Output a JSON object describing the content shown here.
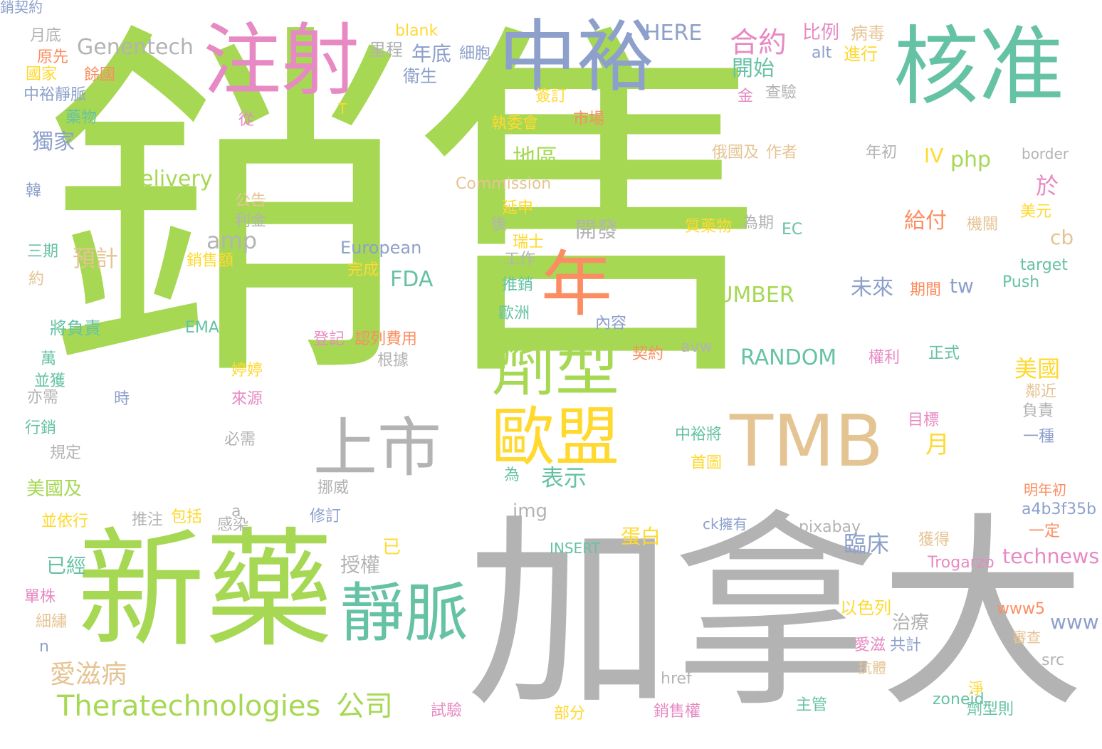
{
  "palette": {
    "green": "#a6d854",
    "gray": "#b3b3b3",
    "teal": "#66c2a5",
    "blue": "#8da0cb",
    "pink": "#e78ac3",
    "orange": "#fc8d62",
    "yellow": "#ffd92f",
    "tan": "#e5c494"
  },
  "words": [
    {
      "text": "銷售",
      "color": "green"
    },
    {
      "text": "加拿大",
      "color": "gray"
    },
    {
      "text": "新藥",
      "color": "green"
    },
    {
      "text": "中裕",
      "color": "blue"
    },
    {
      "text": "核准",
      "color": "teal"
    },
    {
      "text": "注射",
      "color": "pink"
    },
    {
      "text": "TMB",
      "color": "tan"
    },
    {
      "text": "年",
      "color": "orange"
    },
    {
      "text": "劑型",
      "color": "green"
    },
    {
      "text": "歐盟",
      "color": "yellow"
    },
    {
      "text": "上市",
      "color": "gray"
    },
    {
      "text": "靜脈",
      "color": "teal"
    },
    {
      "text": "Theratechnologies",
      "color": "green"
    },
    {
      "text": "公司",
      "color": "green"
    },
    {
      "text": "愛滋病",
      "color": "tan"
    },
    {
      "text": "Genentech",
      "color": "gray"
    },
    {
      "text": "合約",
      "color": "pink"
    },
    {
      "text": "開始",
      "color": "teal"
    },
    {
      "text": "HERE",
      "color": "blue"
    },
    {
      "text": "比例",
      "color": "pink"
    },
    {
      "text": "病毒",
      "color": "tan"
    },
    {
      "text": "blank",
      "color": "yellow"
    },
    {
      "text": "里程",
      "color": "gray"
    },
    {
      "text": "年底",
      "color": "blue"
    },
    {
      "text": "細胞",
      "color": "blue"
    },
    {
      "text": "衛生",
      "color": "blue"
    },
    {
      "text": "alt",
      "color": "blue"
    },
    {
      "text": "進行",
      "color": "yellow"
    },
    {
      "text": "月底",
      "color": "gray"
    },
    {
      "text": "原先",
      "color": "orange"
    },
    {
      "text": "國家",
      "color": "yellow"
    },
    {
      "text": "餘國",
      "color": "orange"
    },
    {
      "text": "中裕靜脈",
      "color": "blue"
    },
    {
      "text": "藥物",
      "color": "teal"
    },
    {
      "text": "T",
      "color": "yellow"
    },
    {
      "text": "從",
      "color": "pink"
    },
    {
      "text": "簽訂",
      "color": "yellow"
    },
    {
      "text": "執委會",
      "color": "yellow"
    },
    {
      "text": "市場",
      "color": "orange"
    },
    {
      "text": "金",
      "color": "pink"
    },
    {
      "text": "查驗",
      "color": "gray"
    },
    {
      "text": "獨家",
      "color": "blue"
    },
    {
      "text": "地區",
      "color": "green"
    },
    {
      "text": "俄國及",
      "color": "tan"
    },
    {
      "text": "作者",
      "color": "tan"
    },
    {
      "text": "年初",
      "color": "gray"
    },
    {
      "text": "IV",
      "color": "yellow"
    },
    {
      "text": "php",
      "color": "green"
    },
    {
      "text": "border",
      "color": "gray"
    },
    {
      "text": "delivery",
      "color": "green"
    },
    {
      "text": "Commission",
      "color": "tan"
    },
    {
      "text": "於",
      "color": "pink"
    },
    {
      "text": "韓",
      "color": "blue"
    },
    {
      "text": "公告",
      "color": "tan"
    },
    {
      "text": "延申",
      "color": "yellow"
    },
    {
      "text": "美元",
      "color": "yellow"
    },
    {
      "text": "利金",
      "color": "gray"
    },
    {
      "text": "給付",
      "color": "orange"
    },
    {
      "text": "amp",
      "color": "gray"
    },
    {
      "text": "開發",
      "color": "gray"
    },
    {
      "text": "後",
      "color": "gray"
    },
    {
      "text": "質藥物",
      "color": "yellow"
    },
    {
      "text": "為期",
      "color": "gray"
    },
    {
      "text": "EC",
      "color": "teal"
    },
    {
      "text": "機關",
      "color": "tan"
    },
    {
      "text": "cb",
      "color": "tan"
    },
    {
      "text": "三期",
      "color": "teal"
    },
    {
      "text": "預計",
      "color": "tan"
    },
    {
      "text": "瑞士",
      "color": "yellow"
    },
    {
      "text": "European",
      "color": "blue"
    },
    {
      "text": "工作",
      "color": "gray"
    },
    {
      "text": "target",
      "color": "teal"
    },
    {
      "text": "約",
      "color": "tan"
    },
    {
      "text": "銷售額",
      "color": "yellow"
    },
    {
      "text": "完成",
      "color": "yellow"
    },
    {
      "text": "FDA",
      "color": "teal"
    },
    {
      "text": "推銷",
      "color": "teal"
    },
    {
      "text": "NUMBER",
      "color": "green"
    },
    {
      "text": "未來",
      "color": "blue"
    },
    {
      "text": "期間",
      "color": "orange"
    },
    {
      "text": "tw",
      "color": "blue"
    },
    {
      "text": "Push",
      "color": "teal"
    },
    {
      "text": "歐洲",
      "color": "teal"
    },
    {
      "text": "將負責",
      "color": "teal"
    },
    {
      "text": "EMA",
      "color": "teal"
    },
    {
      "text": "內容",
      "color": "blue"
    },
    {
      "text": "登記",
      "color": "pink"
    },
    {
      "text": "認列費用",
      "color": "orange"
    },
    {
      "text": "契約",
      "color": "orange"
    },
    {
      "text": "avw",
      "color": "gray"
    },
    {
      "text": "RANDOM",
      "color": "teal"
    },
    {
      "text": "權利",
      "color": "pink"
    },
    {
      "text": "正式",
      "color": "teal"
    },
    {
      "text": "萬",
      "color": "teal"
    },
    {
      "text": "根據",
      "color": "gray"
    },
    {
      "text": "婷婷",
      "color": "yellow"
    },
    {
      "text": "美國",
      "color": "yellow"
    },
    {
      "text": "並獲",
      "color": "teal"
    },
    {
      "text": "時",
      "color": "blue"
    },
    {
      "text": "來源",
      "color": "pink"
    },
    {
      "text": "鄰近",
      "color": "tan"
    },
    {
      "text": "亦需",
      "color": "gray"
    },
    {
      "text": "負責",
      "color": "gray"
    },
    {
      "text": "行銷",
      "color": "teal"
    },
    {
      "text": "中裕將",
      "color": "teal"
    },
    {
      "text": "目標",
      "color": "pink"
    },
    {
      "text": "一種",
      "color": "blue"
    },
    {
      "text": "必需",
      "color": "gray"
    },
    {
      "text": "首圖",
      "color": "yellow"
    },
    {
      "text": "月",
      "color": "yellow"
    },
    {
      "text": "規定",
      "color": "gray"
    },
    {
      "text": "表示",
      "color": "teal"
    },
    {
      "text": "美國及",
      "color": "green"
    },
    {
      "text": "為",
      "color": "teal"
    },
    {
      "text": "挪威",
      "color": "gray"
    },
    {
      "text": "明年初",
      "color": "orange"
    },
    {
      "text": "img",
      "color": "gray"
    },
    {
      "text": "a4b3f35b",
      "color": "blue"
    },
    {
      "text": "並依行",
      "color": "yellow"
    },
    {
      "text": "推注",
      "color": "gray"
    },
    {
      "text": "包括",
      "color": "yellow"
    },
    {
      "text": "感染",
      "color": "gray"
    },
    {
      "text": "a",
      "color": "gray"
    },
    {
      "text": "修訂",
      "color": "blue"
    },
    {
      "text": "ck擁有",
      "color": "blue"
    },
    {
      "text": "pixabay",
      "color": "gray"
    },
    {
      "text": "一定",
      "color": "orange"
    },
    {
      "text": "蛋白",
      "color": "yellow"
    },
    {
      "text": "INSERT",
      "color": "teal"
    },
    {
      "text": "臨床",
      "color": "blue"
    },
    {
      "text": "獲得",
      "color": "tan"
    },
    {
      "text": "已經",
      "color": "teal"
    },
    {
      "text": "已",
      "color": "yellow"
    },
    {
      "text": "technews",
      "color": "pink"
    },
    {
      "text": "授權",
      "color": "gray"
    },
    {
      "text": "Trogarzo",
      "color": "pink"
    },
    {
      "text": "單株",
      "color": "pink"
    },
    {
      "text": "以色列",
      "color": "yellow"
    },
    {
      "text": "www5",
      "color": "orange"
    },
    {
      "text": "細繡",
      "color": "tan"
    },
    {
      "text": "治療",
      "color": "gray"
    },
    {
      "text": "www",
      "color": "blue"
    },
    {
      "text": "n",
      "color": "blue"
    },
    {
      "text": "愛滋",
      "color": "pink"
    },
    {
      "text": "共計",
      "color": "blue"
    },
    {
      "text": "審查",
      "color": "tan"
    },
    {
      "text": "src",
      "color": "gray"
    },
    {
      "text": "抗體",
      "color": "tan"
    },
    {
      "text": "href",
      "color": "gray"
    },
    {
      "text": "淨",
      "color": "yellow"
    },
    {
      "text": "主管",
      "color": "teal"
    },
    {
      "text": "zoneid",
      "color": "teal"
    },
    {
      "text": "試驗",
      "color": "pink"
    },
    {
      "text": "部分",
      "color": "yellow"
    },
    {
      "text": "銷售權",
      "color": "pink"
    },
    {
      "text": "劑型則",
      "color": "teal"
    },
    {
      "text": "銷契約",
      "color": "blue"
    }
  ]
}
